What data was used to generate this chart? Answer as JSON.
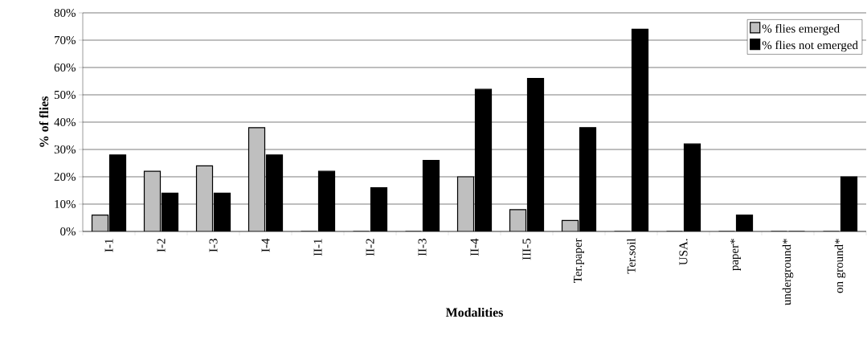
{
  "chart_data": {
    "type": "bar",
    "xlabel": "Modalities",
    "ylabel": "% of flies",
    "categories": [
      "I-1",
      "I-2",
      "I-3",
      "I-4",
      "II-1",
      "II-2",
      "II-3",
      "II-4",
      "III-5",
      "Ter.paper",
      "Ter.soil",
      "USA.",
      "paper*",
      "underground*",
      "on ground*"
    ],
    "series": [
      {
        "name": "% flies emerged",
        "color": "#bfbfbf",
        "values": [
          6,
          22,
          24,
          38,
          0,
          0,
          0,
          20,
          8,
          4,
          0,
          0,
          0,
          0,
          0
        ]
      },
      {
        "name": "% flies not emerged",
        "color": "#000000",
        "values": [
          28,
          14,
          14,
          28,
          22,
          16,
          26,
          52,
          56,
          38,
          74,
          32,
          6,
          0,
          20
        ]
      }
    ],
    "ylim": [
      0,
      80
    ],
    "yticks": [
      {
        "value": 0,
        "label": "0%"
      },
      {
        "value": 10,
        "label": "10%"
      },
      {
        "value": 20,
        "label": "20%"
      },
      {
        "value": 30,
        "label": "30%"
      },
      {
        "value": 40,
        "label": "40%"
      },
      {
        "value": 50,
        "label": "50%"
      },
      {
        "value": 60,
        "label": "60%"
      },
      {
        "value": 70,
        "label": "70%"
      },
      {
        "value": 80,
        "label": "80%"
      }
    ],
    "grid": "y",
    "legend": "top right"
  }
}
